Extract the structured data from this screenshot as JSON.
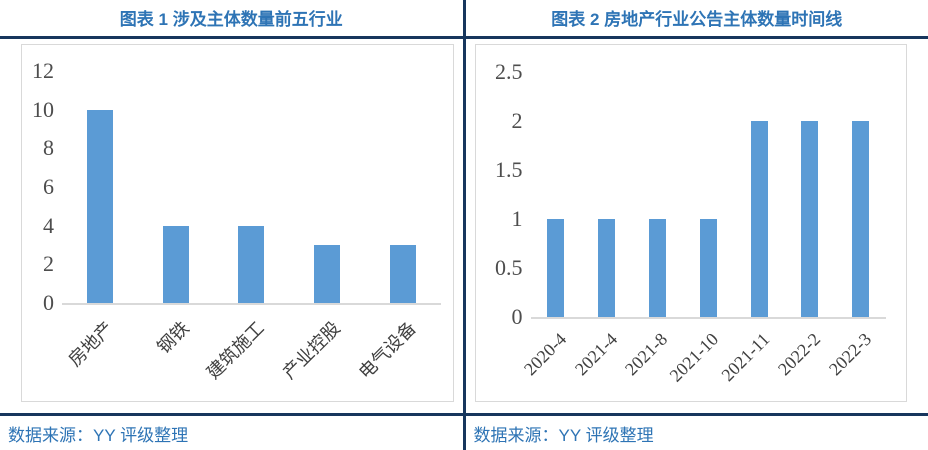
{
  "colors": {
    "accent_blue": "#2E74B5",
    "rule_navy": "#17365D",
    "bar_blue": "#5B9BD5",
    "axis_gray": "#D9D9D9"
  },
  "left_panel": {
    "title": "图表 1 涉及主体数量前五行业",
    "source": "数据来源：YY 评级整理"
  },
  "right_panel": {
    "title": "图表 2 房地产行业公告主体数量时间线",
    "source": "数据来源：YY 评级整理"
  },
  "chart_data": [
    {
      "type": "bar",
      "title": "图表 1 涉及主体数量前五行业",
      "categories": [
        "房地产",
        "钢铁",
        "建筑施工",
        "产业控股",
        "电气设备"
      ],
      "values": [
        10,
        4,
        4,
        3,
        3
      ],
      "xlabel": "",
      "ylabel": "",
      "ylim": [
        0,
        12
      ],
      "yticks": [
        0,
        2,
        4,
        6,
        8,
        10,
        12
      ],
      "bar_color": "#5B9BD5",
      "grid": "off",
      "legend": "none",
      "x_tick_rotation": 45
    },
    {
      "type": "bar",
      "title": "图表 2 房地产行业公告主体数量时间线",
      "categories": [
        "2020-4",
        "2021-4",
        "2021-8",
        "2021-10",
        "2021-11",
        "2022-2",
        "2022-3"
      ],
      "values": [
        1,
        1,
        1,
        1,
        2,
        2,
        2
      ],
      "xlabel": "",
      "ylabel": "",
      "ylim": [
        0,
        2.5
      ],
      "yticks": [
        0,
        0.5,
        1,
        1.5,
        2,
        2.5
      ],
      "bar_color": "#5B9BD5",
      "grid": "off",
      "legend": "none",
      "x_tick_rotation": 45
    }
  ]
}
